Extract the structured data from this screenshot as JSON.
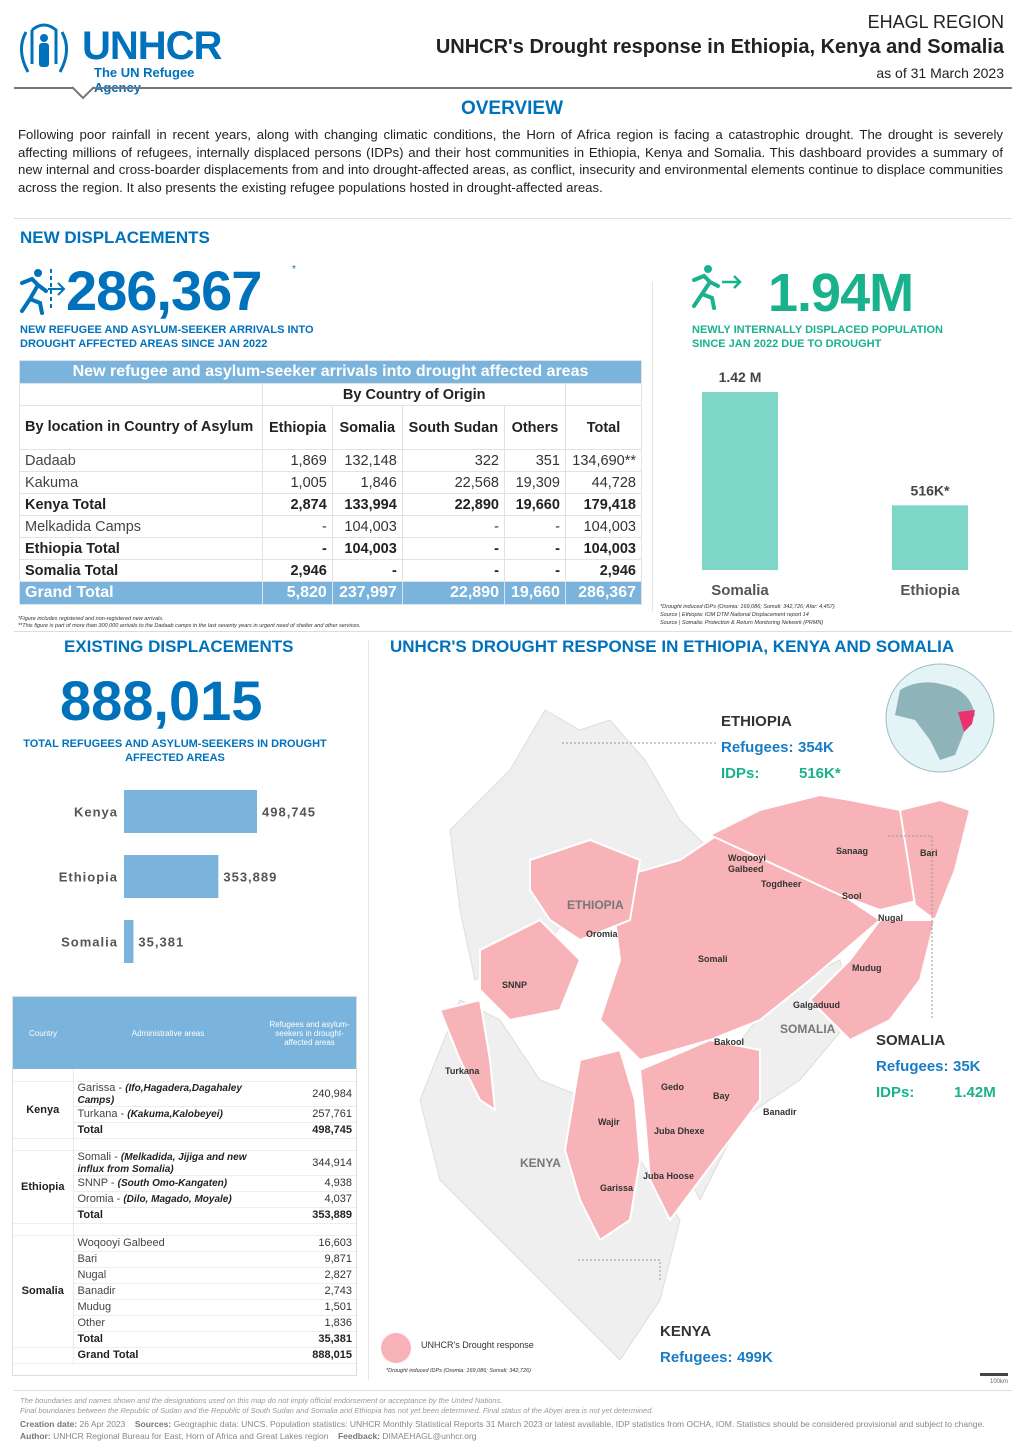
{
  "header": {
    "logo_word": "UNHCR",
    "logo_sub": "The UN Refugee Agency",
    "region": "EHAGL REGION",
    "title": "UNHCR's Drought response in Ethiopia, Kenya and Somalia",
    "as_of": "as of 31 March 2023"
  },
  "overview": {
    "title": "OVERVIEW",
    "text": "Following poor rainfall in recent years, along with changing climatic conditions, the Horn of Africa region is facing a catastrophic drought. The drought is severely affecting millions of refugees, internally displaced persons (IDPs) and their host communities in Ethiopia, Kenya and Somalia. This dashboard provides a summary of new internal and cross-boarder displacements from and into drought-affected areas, as conflict, insecurity and environmental elements continue to displace communities across the region. It also presents the existing refugee populations hosted in drought-affected areas."
  },
  "new_displacements": {
    "title": "NEW DISPLACEMENTS",
    "big_number": "286,367",
    "star": "*",
    "subtitle": "NEW REFUGEE AND ASYLUM-SEEKER ARRIVALS INTO DROUGHT AFFECTED AREAS SINCE JAN 2022",
    "table": {
      "caption": "New refugee and asylum-seeker arrivals into drought affected areas",
      "group_header": "By Country of Origin",
      "row_header": "By location in Country of Asylum",
      "columns": [
        "Ethiopia",
        "Somalia",
        "South Sudan",
        "Others",
        "Total"
      ],
      "rows": [
        {
          "label": "Dadaab",
          "values": [
            "1,869",
            "132,148",
            "322",
            "351",
            "134,690**"
          ],
          "bold": false
        },
        {
          "label": "Kakuma",
          "values": [
            "1,005",
            "1,846",
            "22,568",
            "19,309",
            "44,728"
          ],
          "bold": false
        },
        {
          "label": "Kenya Total",
          "values": [
            "2,874",
            "133,994",
            "22,890",
            "19,660",
            "179,418"
          ],
          "bold": true
        },
        {
          "label": "Melkadida Camps",
          "values": [
            "-",
            "104,003",
            "-",
            "-",
            "104,003"
          ],
          "bold": false
        },
        {
          "label": "Ethiopia Total",
          "values": [
            "-",
            "104,003",
            "-",
            "-",
            "104,003"
          ],
          "bold": true
        },
        {
          "label": "Somalia Total",
          "values": [
            "2,946",
            "-",
            "-",
            "-",
            "2,946"
          ],
          "bold": true
        }
      ],
      "grand_total": {
        "label": "Grand Total",
        "values": [
          "5,820",
          "237,997",
          "22,890",
          "19,660",
          "286,367"
        ]
      },
      "notes": [
        "*Figure includes registered and non-registered new arrivals.",
        "**This figure is part of more than 300,000 arrivals to the Dadaab camps in the last seventy years in urgent need of shelter and other services."
      ]
    }
  },
  "idps": {
    "big_number": "1.94M",
    "subtitle_line1": "NEWLY INTERNALLY DISPLACED POPULATION",
    "subtitle_line2": "SINCE JAN 2022 DUE TO DROUGHT",
    "notes": [
      "*Drought induced IDPs (Oromia: 169,086; Somali: 342,726; Afar: 4,457)",
      "Source | Ethiopia: IOM DTM National Displacement report 14",
      "Source | Somalia: Protection & Return Monitoring Network (PRMN)"
    ]
  },
  "existing": {
    "title": "EXISTING DISPLACEMENTS",
    "big_number": "888,015",
    "subtitle": "TOTAL REFUGEES AND ASYLUM-SEEKERS IN DROUGHT AFFECTED AREAS",
    "table": {
      "headers": [
        "Country",
        "Administrative areas",
        "Refugees and asylum-seekers in drought-affected areas"
      ],
      "groups": [
        {
          "country": "Kenya",
          "rows": [
            {
              "area": "Garissa - ",
              "detail": "(Ifo,Hagadera,Dagahaley Camps)",
              "value": "240,984"
            },
            {
              "area": "Turkana - ",
              "detail": "(Kakuma,Kalobeyei)",
              "value": "257,761"
            }
          ],
          "total_label": "Total",
          "total": "498,745"
        },
        {
          "country": "Ethiopia",
          "rows": [
            {
              "area": "Somali - ",
              "detail": "(Melkadida, Jijiga and new influx from Somalia)",
              "value": "344,914"
            },
            {
              "area": "SNNP - ",
              "detail": "(South Omo-Kangaten)",
              "value": "4,938"
            },
            {
              "area": "Oromia - ",
              "detail": "(Dilo, Magado, Moyale)",
              "value": "4,037"
            }
          ],
          "total_label": "Total",
          "total": "353,889"
        },
        {
          "country": "Somalia",
          "rows": [
            {
              "area": "Woqooyi Galbeed",
              "detail": "",
              "value": "16,603"
            },
            {
              "area": "Bari",
              "detail": "",
              "value": "9,871"
            },
            {
              "area": "Nugal",
              "detail": "",
              "value": "2,827"
            },
            {
              "area": "Banadir",
              "detail": "",
              "value": "2,743"
            },
            {
              "area": "Mudug",
              "detail": "",
              "value": "1,501"
            },
            {
              "area": "Other",
              "detail": "",
              "value": "1,836"
            }
          ],
          "total_label": "Total",
          "total": "35,381"
        }
      ],
      "grand_total_label": "Grand Total",
      "grand_total": "888,015"
    }
  },
  "map": {
    "title": "UNHCR'S DROUGHT RESPONSE IN ETHIOPIA, KENYA AND SOMALIA",
    "callouts": {
      "ethiopia": {
        "name": "ETHIOPIA",
        "ref_label": "Refugees:",
        "ref": "354K",
        "idp_label": "IDPs:",
        "idp": "516K*"
      },
      "somalia": {
        "name": "SOMALIA",
        "ref_label": "Refugees:",
        "ref": "35K",
        "idp_label": "IDPs:",
        "idp": "1.42M"
      },
      "kenya": {
        "name": "KENYA",
        "ref_label": "Refugees:",
        "ref": "499K"
      }
    },
    "country_labels": [
      "ETHIOPIA",
      "SOMALIA",
      "KENYA"
    ],
    "region_labels": [
      "Woqooyi Galbeed",
      "Sanaag",
      "Bari",
      "Togdheer",
      "Sool",
      "Nugal",
      "Mudug",
      "Galgaduud",
      "Oromia",
      "Somali",
      "SNNP",
      "Bakool",
      "Gedo",
      "Bay",
      "Banadir",
      "Juba Dhexe",
      "Juba Hoose",
      "Turkana",
      "Wajir",
      "Garissa"
    ],
    "legend": "UNHCR's Drought response",
    "footnote": "*Drought induced IDPs (Oromia: 169,086; Somali: 342,726)",
    "scale": "100km",
    "colors": {
      "response": "#f7b3b7",
      "land": "#efefef"
    }
  },
  "footer": {
    "disclaimer1": "The boundaries and names shown and the designations used on this map do not imply official endorsement or acceptance by the United Nations.",
    "disclaimer2": "Final boundaries between the Republic of Sudan and the Republic of South Sudan and Somalia and Ethiopia has not yet been determined. Final status of the Abyei area is not yet determined.",
    "creation_label": "Creation date:",
    "creation": "26 Apr 2023",
    "sources_label": "Sources:",
    "sources": "Geographic data: UNCS. Population statistics: UNHCR Monthly Statistical Reports 31 March 2023 or latest available, IDP statistics from OCHA, IOM. Statistics should be considered provisional and subject to change.",
    "author_label": "Author:",
    "author": "UNHCR Regional Bureau for East, Horn of Africa and Great Lakes region",
    "feedback_label": "Feedback:",
    "feedback": "DIMAEHAGL@unhcr.org"
  },
  "chart_data": [
    {
      "type": "bar",
      "title": "Newly internally displaced population since Jan 2022 due to drought",
      "categories": [
        "Somalia",
        "Ethiopia"
      ],
      "values": [
        1420000,
        516000
      ],
      "value_labels": [
        "1.42 M",
        "516K*"
      ],
      "xlabel": "",
      "ylabel": "",
      "color": "#7dd6c6"
    },
    {
      "type": "bar",
      "orientation": "horizontal",
      "title": "Total refugees and asylum-seekers in drought affected areas",
      "categories": [
        "Kenya",
        "Ethiopia",
        "Somalia"
      ],
      "values": [
        498745,
        353889,
        35381
      ],
      "value_labels": [
        "498,745",
        "353,889",
        "35,381"
      ],
      "xlabel": "",
      "ylabel": "",
      "color": "#7ab4dc"
    }
  ]
}
